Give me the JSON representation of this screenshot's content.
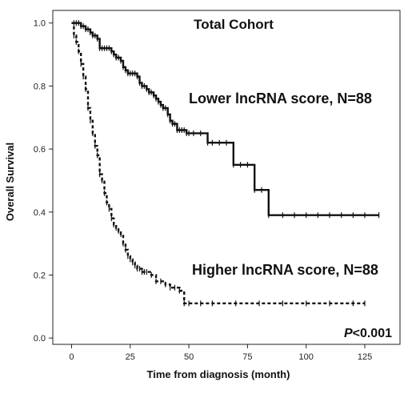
{
  "chart_data": {
    "type": "line",
    "title": "Total  Cohort",
    "xlabel": "Time from diagnosis (month)",
    "ylabel": "Overall Survival",
    "xlim": [
      -8,
      140
    ],
    "ylim": [
      -0.02,
      1.04
    ],
    "xticks": [
      "0",
      "25",
      "50",
      "75",
      "100",
      "125"
    ],
    "yticks": [
      "0.0",
      "0.2",
      "0.4",
      "0.6",
      "0.8",
      "1.0"
    ],
    "grid": false,
    "annotations": {
      "lower": "Lower lncRNA score, N=88",
      "higher": "Higher lncRNA score, N=88",
      "p_prefix": "P",
      "p_rest": "<0.001"
    },
    "series": [
      {
        "name": "Lower lncRNA score, N=88",
        "style": "solid",
        "x": [
          0,
          1,
          2,
          3,
          4,
          5,
          6,
          7,
          8,
          9,
          10,
          11,
          12,
          13,
          14,
          15,
          16,
          17,
          18,
          19,
          20,
          21,
          22,
          23,
          24,
          25,
          26,
          27,
          28,
          29,
          30,
          31,
          32,
          33,
          34,
          35,
          36,
          37,
          38,
          39,
          40,
          41,
          42,
          43,
          44,
          45,
          46,
          47,
          48,
          49,
          50,
          52,
          55,
          58,
          60,
          63,
          66,
          69,
          72,
          75,
          78,
          81,
          84,
          90,
          95,
          100,
          105,
          110,
          115,
          120,
          125,
          131
        ],
        "values": [
          1.0,
          1.0,
          1.0,
          1.0,
          0.99,
          0.99,
          0.98,
          0.98,
          0.97,
          0.96,
          0.96,
          0.95,
          0.92,
          0.92,
          0.92,
          0.92,
          0.92,
          0.91,
          0.9,
          0.89,
          0.89,
          0.88,
          0.86,
          0.85,
          0.84,
          0.84,
          0.84,
          0.84,
          0.83,
          0.81,
          0.8,
          0.8,
          0.79,
          0.78,
          0.78,
          0.77,
          0.76,
          0.75,
          0.74,
          0.73,
          0.73,
          0.71,
          0.69,
          0.68,
          0.68,
          0.66,
          0.66,
          0.66,
          0.66,
          0.65,
          0.65,
          0.65,
          0.65,
          0.62,
          0.62,
          0.62,
          0.62,
          0.55,
          0.55,
          0.55,
          0.47,
          0.47,
          0.39,
          0.39,
          0.39,
          0.39,
          0.39,
          0.39,
          0.39,
          0.39,
          0.39,
          0.39
        ]
      },
      {
        "name": "Higher lncRNA score, N=88",
        "style": "dashed",
        "x": [
          0,
          1,
          2,
          3,
          4,
          5,
          6,
          7,
          8,
          9,
          10,
          11,
          12,
          13,
          14,
          15,
          16,
          17,
          18,
          19,
          20,
          21,
          22,
          23,
          24,
          25,
          26,
          27,
          28,
          29,
          30,
          31,
          32,
          34,
          36,
          38,
          40,
          42,
          44,
          46,
          48,
          50,
          55,
          60,
          70,
          80,
          90,
          100,
          110,
          120,
          125
        ],
        "values": [
          1.0,
          0.96,
          0.94,
          0.91,
          0.87,
          0.83,
          0.79,
          0.73,
          0.69,
          0.65,
          0.61,
          0.58,
          0.52,
          0.5,
          0.46,
          0.43,
          0.41,
          0.38,
          0.36,
          0.35,
          0.34,
          0.33,
          0.3,
          0.28,
          0.26,
          0.25,
          0.24,
          0.23,
          0.22,
          0.22,
          0.21,
          0.21,
          0.21,
          0.2,
          0.18,
          0.18,
          0.17,
          0.16,
          0.16,
          0.15,
          0.11,
          0.11,
          0.11,
          0.11,
          0.11,
          0.11,
          0.11,
          0.11,
          0.11,
          0.11,
          0.11
        ]
      }
    ]
  }
}
